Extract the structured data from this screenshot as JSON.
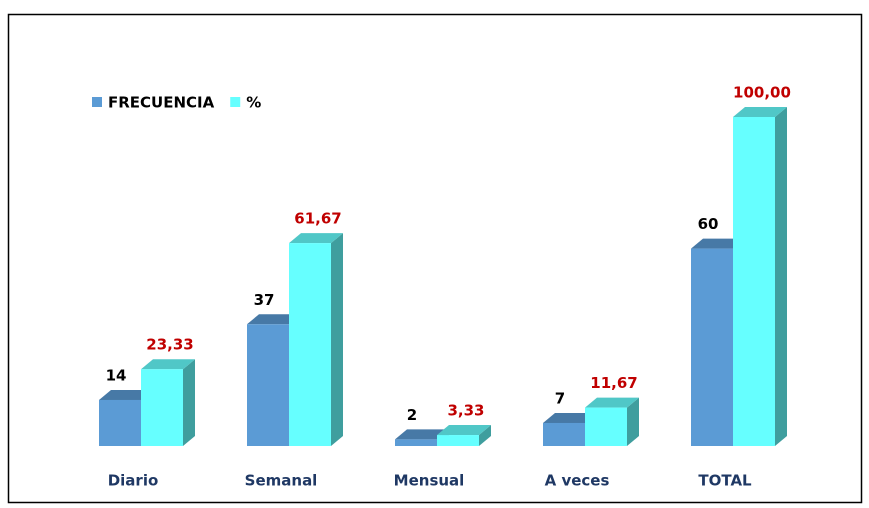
{
  "chart_data": {
    "type": "bar3d",
    "categories": [
      "Diario",
      "Semanal",
      "Mensual",
      "A veces",
      "TOTAL"
    ],
    "series": [
      {
        "name": "FRECUENCIA",
        "color": "#5b9bd5",
        "values": [
          14,
          37,
          2,
          7,
          60
        ]
      },
      {
        "name": "%",
        "color": "#66ffff",
        "values": [
          23.33,
          61.67,
          3.33,
          11.67,
          100
        ],
        "value_labels": [
          "23,33",
          "61,67",
          "3,33",
          "11,67",
          "100,00"
        ]
      }
    ],
    "legend": "top-left"
  }
}
